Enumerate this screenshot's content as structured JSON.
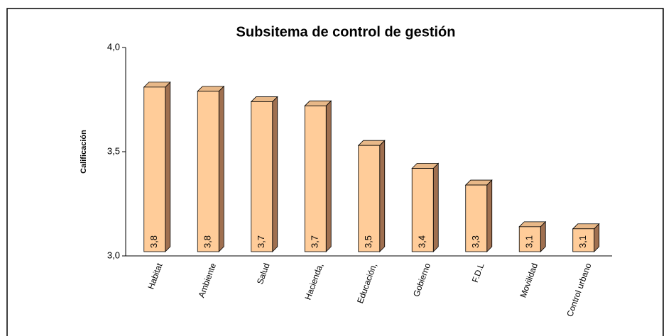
{
  "chart_data": {
    "type": "bar3d",
    "title": "Subsitema de control de gestión",
    "y_label": "Calificación",
    "categories": [
      "Habitat",
      "Ambiente",
      "Salud",
      "Hacienda,",
      "Educación,",
      "Gobierno",
      "F.D.L",
      "Movilidad",
      "Control urbano"
    ],
    "values": [
      3.81,
      3.79,
      3.74,
      3.72,
      3.53,
      3.42,
      3.34,
      3.14,
      3.13
    ],
    "value_labels": [
      "3,8",
      "3,8",
      "3,7",
      "3,7",
      "3,5",
      "3,4",
      "3,3",
      "3,1",
      "3,1"
    ],
    "color": "#ffcc99",
    "ylim": [
      3,
      4
    ],
    "yticks": [
      {
        "value": 3,
        "label": "3,0"
      },
      {
        "value": 3.5,
        "label": "3,5"
      },
      {
        "value": 4,
        "label": "4,0"
      }
    ]
  }
}
